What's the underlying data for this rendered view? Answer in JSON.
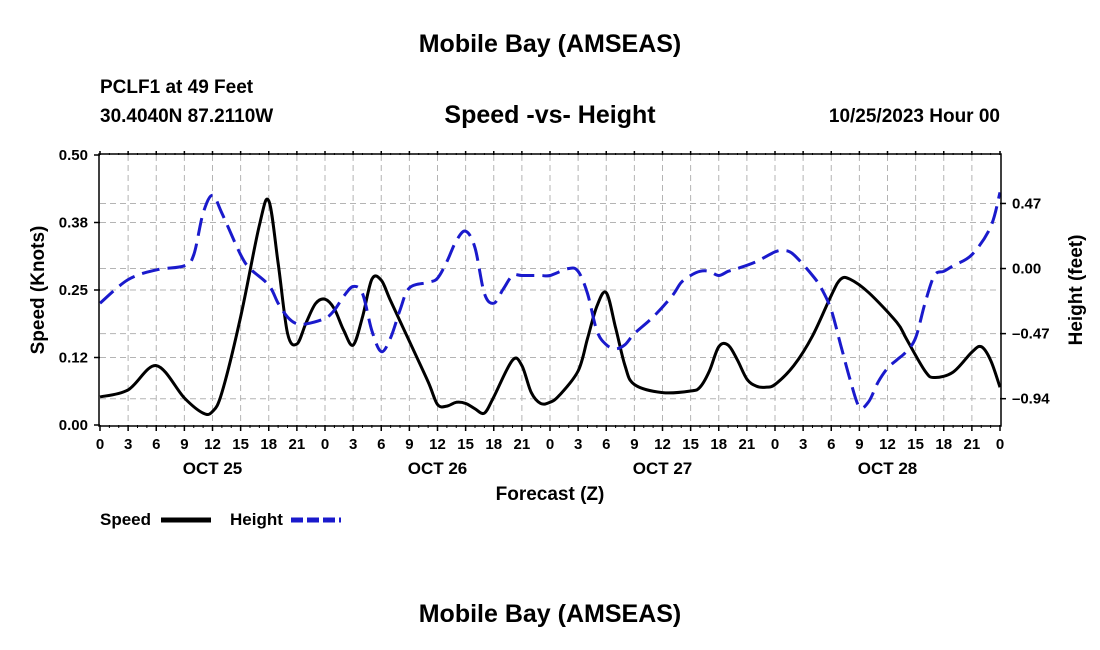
{
  "header": {
    "title": "Mobile Bay (AMSEAS)",
    "station": "PCLF1 at 49 Feet",
    "coords": "30.4040N  87.2110W",
    "subtitle": "Speed -vs- Height",
    "run_time": "10/25/2023 Hour 00"
  },
  "footer": {
    "title": "Mobile Bay (AMSEAS)"
  },
  "colors": {
    "speed": "#000000",
    "height": "#1a1acc",
    "grid": "#b4b4b4"
  },
  "chart_data": {
    "type": "line",
    "xlabel": "Forecast (Z)",
    "ylabel_left": "Speed (Knots)",
    "ylabel_right": "Height (feet)",
    "x_range_hours": [
      0,
      96
    ],
    "x_ticks": [
      {
        "h": 0,
        "label": "0"
      },
      {
        "h": 3,
        "label": "3"
      },
      {
        "h": 6,
        "label": "6"
      },
      {
        "h": 9,
        "label": "9"
      },
      {
        "h": 12,
        "label": "12"
      },
      {
        "h": 15,
        "label": "15"
      },
      {
        "h": 18,
        "label": "18"
      },
      {
        "h": 21,
        "label": "21"
      },
      {
        "h": 24,
        "label": "0"
      },
      {
        "h": 27,
        "label": "3"
      },
      {
        "h": 30,
        "label": "6"
      },
      {
        "h": 33,
        "label": "9"
      },
      {
        "h": 36,
        "label": "12"
      },
      {
        "h": 39,
        "label": "15"
      },
      {
        "h": 42,
        "label": "18"
      },
      {
        "h": 45,
        "label": "21"
      },
      {
        "h": 48,
        "label": "0"
      },
      {
        "h": 51,
        "label": "3"
      },
      {
        "h": 54,
        "label": "6"
      },
      {
        "h": 57,
        "label": "9"
      },
      {
        "h": 60,
        "label": "12"
      },
      {
        "h": 63,
        "label": "15"
      },
      {
        "h": 66,
        "label": "18"
      },
      {
        "h": 69,
        "label": "21"
      },
      {
        "h": 72,
        "label": "0"
      },
      {
        "h": 75,
        "label": "3"
      },
      {
        "h": 78,
        "label": "6"
      },
      {
        "h": 81,
        "label": "9"
      },
      {
        "h": 84,
        "label": "12"
      },
      {
        "h": 87,
        "label": "15"
      },
      {
        "h": 90,
        "label": "18"
      },
      {
        "h": 93,
        "label": "21"
      },
      {
        "h": 96,
        "label": "0"
      }
    ],
    "date_labels": [
      {
        "h": 12,
        "label": "OCT 25"
      },
      {
        "h": 36,
        "label": "OCT 26"
      },
      {
        "h": 60,
        "label": "OCT 27"
      },
      {
        "h": 84,
        "label": "OCT 28"
      }
    ],
    "y_left": {
      "range": [
        0,
        0.5
      ],
      "ticks": [
        0.0,
        0.125,
        0.25,
        0.375,
        0.5
      ],
      "tick_labels": [
        "0.00",
        "0.12",
        "0.25",
        "0.38",
        "0.50"
      ]
    },
    "y_right": {
      "range": [
        -1.13,
        0.82
      ],
      "ticks": [
        -0.94,
        -0.47,
        0.0,
        0.47
      ],
      "tick_labels": [
        "–0.94",
        "–0.47",
        "0.00",
        "0.47"
      ]
    },
    "series": [
      {
        "name": "Speed",
        "axis": "left",
        "style": "solid",
        "points": [
          [
            0,
            0.052
          ],
          [
            3,
            0.065
          ],
          [
            6,
            0.11
          ],
          [
            9,
            0.05
          ],
          [
            11,
            0.022
          ],
          [
            12,
            0.025
          ],
          [
            13,
            0.06
          ],
          [
            15,
            0.2
          ],
          [
            17,
            0.37
          ],
          [
            18,
            0.415
          ],
          [
            19,
            0.3
          ],
          [
            20,
            0.17
          ],
          [
            21,
            0.15
          ],
          [
            22,
            0.19
          ],
          [
            23,
            0.225
          ],
          [
            24,
            0.233
          ],
          [
            25,
            0.215
          ],
          [
            26,
            0.175
          ],
          [
            27,
            0.148
          ],
          [
            28,
            0.2
          ],
          [
            29,
            0.27
          ],
          [
            30,
            0.268
          ],
          [
            31,
            0.23
          ],
          [
            33,
            0.155
          ],
          [
            35,
            0.08
          ],
          [
            36,
            0.038
          ],
          [
            37,
            0.035
          ],
          [
            38,
            0.042
          ],
          [
            39,
            0.04
          ],
          [
            40,
            0.03
          ],
          [
            41,
            0.022
          ],
          [
            42,
            0.052
          ],
          [
            44,
            0.12
          ],
          [
            45,
            0.11
          ],
          [
            46,
            0.06
          ],
          [
            47,
            0.04
          ],
          [
            48,
            0.042
          ],
          [
            49,
            0.055
          ],
          [
            51,
            0.1
          ],
          [
            52,
            0.16
          ],
          [
            53,
            0.22
          ],
          [
            54,
            0.245
          ],
          [
            55,
            0.18
          ],
          [
            56,
            0.11
          ],
          [
            57,
            0.075
          ],
          [
            60,
            0.06
          ],
          [
            63,
            0.063
          ],
          [
            64,
            0.07
          ],
          [
            65,
            0.1
          ],
          [
            66,
            0.145
          ],
          [
            67,
            0.148
          ],
          [
            68,
            0.12
          ],
          [
            69,
            0.085
          ],
          [
            70,
            0.072
          ],
          [
            71,
            0.07
          ],
          [
            72,
            0.075
          ],
          [
            74,
            0.11
          ],
          [
            76,
            0.165
          ],
          [
            78,
            0.24
          ],
          [
            79,
            0.27
          ],
          [
            80,
            0.27
          ],
          [
            82,
            0.245
          ],
          [
            85,
            0.19
          ],
          [
            86,
            0.16
          ],
          [
            88,
            0.1
          ],
          [
            89,
            0.088
          ],
          [
            91,
            0.098
          ],
          [
            93,
            0.135
          ],
          [
            94,
            0.145
          ],
          [
            95,
            0.12
          ],
          [
            96,
            0.07
          ]
        ]
      },
      {
        "name": "Height",
        "axis": "right",
        "style": "dashed",
        "points": [
          [
            0,
            -0.25
          ],
          [
            3,
            -0.08
          ],
          [
            6,
            -0.01
          ],
          [
            9,
            0.02
          ],
          [
            10,
            0.1
          ],
          [
            11,
            0.4
          ],
          [
            12,
            0.53
          ],
          [
            13,
            0.4
          ],
          [
            15,
            0.1
          ],
          [
            16,
            0.0
          ],
          [
            18,
            -0.12
          ],
          [
            19,
            -0.25
          ],
          [
            20,
            -0.35
          ],
          [
            21,
            -0.4
          ],
          [
            22,
            -0.4
          ],
          [
            24,
            -0.36
          ],
          [
            25,
            -0.3
          ],
          [
            26,
            -0.2
          ],
          [
            27,
            -0.13
          ],
          [
            28,
            -0.18
          ],
          [
            29,
            -0.45
          ],
          [
            30,
            -0.6
          ],
          [
            31,
            -0.5
          ],
          [
            32,
            -0.3
          ],
          [
            33,
            -0.14
          ],
          [
            35,
            -0.1
          ],
          [
            36,
            -0.07
          ],
          [
            37,
            0.05
          ],
          [
            38,
            0.2
          ],
          [
            39,
            0.27
          ],
          [
            40,
            0.15
          ],
          [
            41,
            -0.18
          ],
          [
            42,
            -0.25
          ],
          [
            43,
            -0.15
          ],
          [
            44,
            -0.05
          ],
          [
            45,
            -0.05
          ],
          [
            47,
            -0.05
          ],
          [
            48,
            -0.05
          ],
          [
            50,
            0.0
          ],
          [
            51,
            -0.02
          ],
          [
            52,
            -0.18
          ],
          [
            53,
            -0.45
          ],
          [
            54,
            -0.55
          ],
          [
            55,
            -0.58
          ],
          [
            56,
            -0.55
          ],
          [
            57,
            -0.47
          ],
          [
            59,
            -0.35
          ],
          [
            61,
            -0.2
          ],
          [
            62,
            -0.1
          ],
          [
            63,
            -0.05
          ],
          [
            64,
            -0.02
          ],
          [
            65,
            -0.02
          ],
          [
            66,
            -0.05
          ],
          [
            67,
            -0.02
          ],
          [
            68,
            0.0
          ],
          [
            70,
            0.05
          ],
          [
            72,
            0.12
          ],
          [
            73,
            0.13
          ],
          [
            74,
            0.1
          ],
          [
            76,
            -0.05
          ],
          [
            77,
            -0.15
          ],
          [
            78,
            -0.3
          ],
          [
            79,
            -0.55
          ],
          [
            80,
            -0.8
          ],
          [
            81,
            -1.0
          ],
          [
            82,
            -0.96
          ],
          [
            83,
            -0.82
          ],
          [
            84,
            -0.72
          ],
          [
            85,
            -0.66
          ],
          [
            86,
            -0.6
          ],
          [
            87,
            -0.5
          ],
          [
            88,
            -0.25
          ],
          [
            89,
            -0.05
          ],
          [
            90,
            -0.02
          ],
          [
            91,
            0.02
          ],
          [
            93,
            0.1
          ],
          [
            95,
            0.3
          ],
          [
            96,
            0.55
          ]
        ]
      }
    ],
    "legend": [
      {
        "label": "Speed",
        "series": "Speed"
      },
      {
        "label": "Height",
        "series": "Height"
      }
    ]
  }
}
